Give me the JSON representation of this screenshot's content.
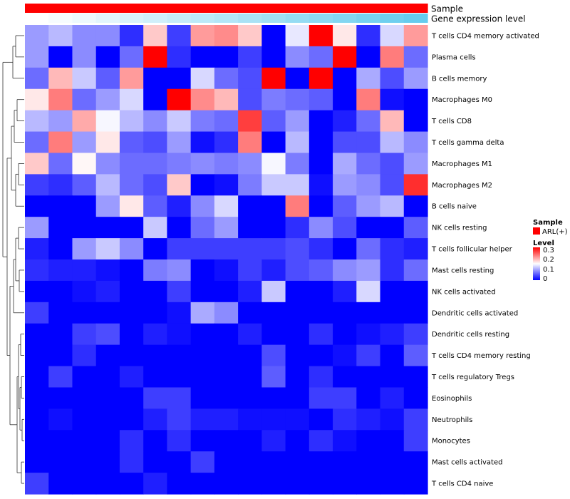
{
  "chart_data": {
    "type": "heatmap",
    "title": "",
    "rows": [
      "T cells CD4 memory activated",
      "Plasma cells",
      "B cells memory",
      "Macrophages M0",
      "T cells CD8",
      "T cells gamma delta",
      "Macrophages M1",
      "Macrophages M2",
      "B cells naive",
      "NK cells resting",
      "T cells follicular helper",
      "Mast cells resting",
      "NK cells activated",
      "Dendritic cells activated",
      "Dendritic cells resting",
      "T cells CD4 memory resting",
      "T cells regulatory  Tregs",
      "Eosinophils",
      "Neutrophils",
      "Monocytes",
      "Mast cells activated",
      "T cells CD4 naive"
    ],
    "n_columns": 17,
    "values": [
      [
        0.1,
        0.12,
        0.09,
        0.09,
        0.03,
        0.2,
        0.04,
        0.23,
        0.24,
        0.2,
        0.0,
        0.15,
        0.33,
        0.18,
        0.03,
        0.14,
        0.23
      ],
      [
        0.1,
        0.0,
        0.09,
        0.0,
        0.07,
        0.33,
        0.03,
        0.0,
        0.0,
        0.04,
        0.0,
        0.09,
        0.07,
        0.33,
        0.0,
        0.25,
        0.07
      ],
      [
        0.07,
        0.21,
        0.13,
        0.06,
        0.23,
        0.0,
        0.0,
        0.14,
        0.07,
        0.05,
        0.33,
        0.0,
        0.33,
        0.0,
        0.11,
        0.05,
        0.1
      ],
      [
        0.18,
        0.25,
        0.07,
        0.1,
        0.14,
        0.0,
        0.33,
        0.24,
        0.21,
        0.05,
        0.08,
        0.07,
        0.06,
        0.0,
        0.25,
        0.01,
        0.0
      ],
      [
        0.12,
        0.1,
        0.22,
        0.16,
        0.12,
        0.09,
        0.13,
        0.08,
        0.07,
        0.29,
        0.06,
        0.1,
        0.0,
        0.02,
        0.07,
        0.21,
        0.0
      ],
      [
        0.07,
        0.25,
        0.1,
        0.18,
        0.06,
        0.05,
        0.1,
        0.01,
        0.03,
        0.25,
        0.0,
        0.12,
        0.0,
        0.05,
        0.05,
        0.12,
        0.09
      ],
      [
        0.2,
        0.07,
        0.17,
        0.09,
        0.07,
        0.07,
        0.08,
        0.09,
        0.08,
        0.09,
        0.16,
        0.08,
        0.0,
        0.11,
        0.07,
        0.05,
        0.1
      ],
      [
        0.04,
        0.03,
        0.06,
        0.12,
        0.07,
        0.05,
        0.2,
        0.0,
        0.01,
        0.08,
        0.13,
        0.13,
        0.01,
        0.1,
        0.09,
        0.05,
        0.3
      ],
      [
        0.0,
        0.0,
        0.0,
        0.1,
        0.18,
        0.06,
        0.02,
        0.09,
        0.14,
        0.0,
        0.0,
        0.25,
        0.0,
        0.06,
        0.1,
        0.12,
        0.0
      ],
      [
        0.1,
        0.0,
        0.0,
        0.0,
        0.0,
        0.13,
        0.0,
        0.07,
        0.1,
        0.0,
        0.0,
        0.03,
        0.09,
        0.05,
        0.0,
        0.0,
        0.06
      ],
      [
        0.02,
        0.0,
        0.1,
        0.13,
        0.09,
        0.0,
        0.04,
        0.04,
        0.04,
        0.04,
        0.04,
        0.05,
        0.03,
        0.0,
        0.07,
        0.03,
        0.02
      ],
      [
        0.03,
        0.02,
        0.02,
        0.01,
        0.0,
        0.08,
        0.09,
        0.0,
        0.01,
        0.04,
        0.02,
        0.05,
        0.06,
        0.09,
        0.1,
        0.03,
        0.07
      ],
      [
        0.0,
        0.0,
        0.01,
        0.02,
        0.0,
        0.0,
        0.04,
        0.0,
        0.0,
        0.02,
        0.13,
        0.0,
        0.0,
        0.02,
        0.14,
        0.0,
        0.0
      ],
      [
        0.04,
        0.0,
        0.0,
        0.0,
        0.0,
        0.0,
        0.01,
        0.11,
        0.09,
        0.0,
        0.0,
        0.0,
        0.0,
        0.0,
        0.0,
        0.0,
        0.0
      ],
      [
        0.0,
        0.0,
        0.04,
        0.05,
        0.0,
        0.02,
        0.01,
        0.0,
        0.0,
        0.02,
        0.0,
        0.0,
        0.03,
        0.0,
        0.01,
        0.02,
        0.04
      ],
      [
        0.0,
        0.0,
        0.03,
        0.0,
        0.0,
        0.0,
        0.0,
        0.0,
        0.0,
        0.0,
        0.05,
        0.0,
        0.0,
        0.01,
        0.04,
        0.0,
        0.06
      ],
      [
        0.0,
        0.04,
        0.0,
        0.0,
        0.02,
        0.0,
        0.0,
        0.0,
        0.0,
        0.0,
        0.06,
        0.0,
        0.03,
        0.0,
        0.0,
        0.0,
        0.0
      ],
      [
        0.0,
        0.0,
        0.0,
        0.0,
        0.0,
        0.04,
        0.04,
        0.0,
        0.0,
        0.0,
        0.0,
        0.0,
        0.04,
        0.04,
        0.0,
        0.02,
        0.0
      ],
      [
        0.0,
        0.01,
        0.0,
        0.0,
        0.0,
        0.02,
        0.04,
        0.02,
        0.02,
        0.01,
        0.01,
        0.01,
        0.0,
        0.03,
        0.02,
        0.01,
        0.04
      ],
      [
        0.0,
        0.0,
        0.0,
        0.0,
        0.03,
        0.0,
        0.03,
        0.0,
        0.0,
        0.0,
        0.02,
        0.0,
        0.03,
        0.01,
        0.0,
        0.0,
        0.04
      ],
      [
        0.0,
        0.0,
        0.0,
        0.0,
        0.03,
        0.0,
        0.0,
        0.04,
        0.0,
        0.0,
        0.0,
        0.0,
        0.0,
        0.0,
        0.0,
        0.0,
        0.0
      ],
      [
        0.04,
        0.0,
        0.0,
        0.0,
        0.0,
        0.02,
        0.0,
        0.0,
        0.0,
        0.0,
        0.0,
        0.0,
        0.0,
        0.0,
        0.0,
        0.0,
        0.0
      ]
    ],
    "top_annotations": [
      {
        "name": "Sample",
        "values": [
          "ARL(+)",
          "ARL(+)",
          "ARL(+)",
          "ARL(+)",
          "ARL(+)",
          "ARL(+)",
          "ARL(+)",
          "ARL(+)",
          "ARL(+)",
          "ARL(+)",
          "ARL(+)",
          "ARL(+)",
          "ARL(+)",
          "ARL(+)",
          "ARL(+)",
          "ARL(+)",
          "ARL(+)"
        ]
      },
      {
        "name": "Gene expression level",
        "values": [
          0.0,
          0.06,
          0.12,
          0.19,
          0.25,
          0.31,
          0.37,
          0.44,
          0.5,
          0.56,
          0.62,
          0.69,
          0.75,
          0.81,
          0.88,
          0.94,
          1.0
        ]
      }
    ],
    "legend": {
      "position": "right",
      "sample_title": "Sample",
      "sample_entries": [
        {
          "label": "ARL(+)",
          "color": "#ff0000"
        }
      ],
      "level_title": "Level",
      "level_ticks": [
        "0.3",
        "0.2",
        "0.1",
        "0"
      ],
      "level_range": [
        0,
        0.33
      ]
    },
    "colors": {
      "low": "#0000ff",
      "mid": "#ffffff",
      "high": "#ff0000",
      "sample": "#ff0000",
      "gene_low": "#ffffff",
      "gene_high": "#66ccee"
    }
  }
}
